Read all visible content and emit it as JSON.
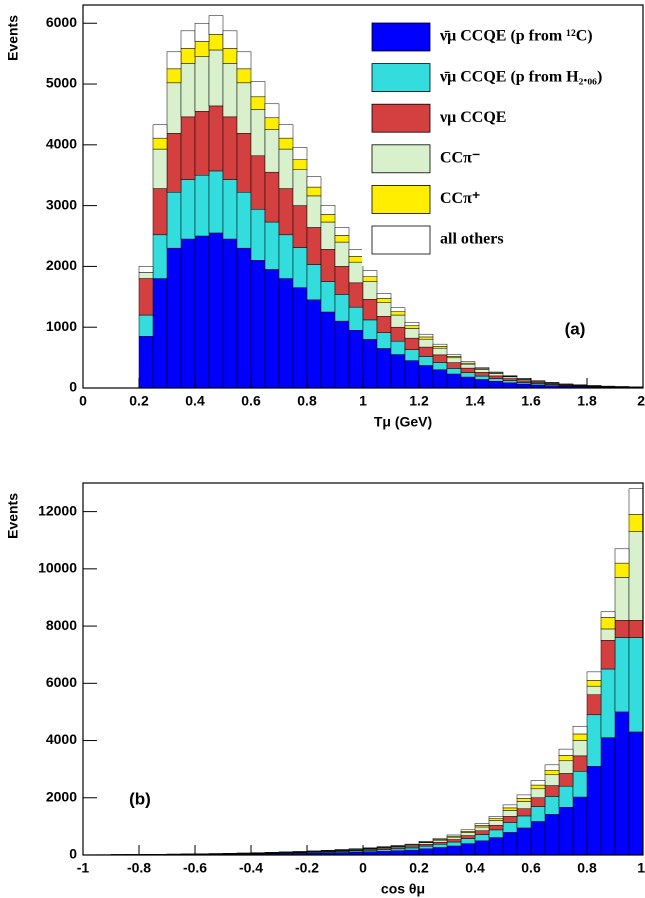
{
  "chart_data": [
    {
      "type": "stacked_histogram",
      "x_label": "Tμ (GeV)",
      "y_label": "Events",
      "annotation": "(a)",
      "bins": [
        0,
        0.05,
        0.1,
        0.15,
        0.2,
        0.25,
        0.3,
        0.35,
        0.4,
        0.45,
        0.5,
        0.55,
        0.6,
        0.65,
        0.7,
        0.75,
        0.8,
        0.85,
        0.9,
        0.95,
        1,
        1.05,
        1.1,
        1.15,
        1.2,
        1.25,
        1.3,
        1.35,
        1.4,
        1.45,
        1.5,
        1.55,
        1.6,
        1.65,
        1.7,
        1.75,
        1.8,
        1.85,
        1.9,
        1.95,
        2
      ],
      "xlim": [
        0,
        2
      ],
      "xticks": [
        0,
        0.2,
        0.4,
        0.6,
        0.8,
        1,
        1.2,
        1.4,
        1.6,
        1.8,
        2
      ],
      "ylim": [
        0,
        6300
      ],
      "yticks": [
        0,
        1000,
        2000,
        3000,
        4000,
        5000,
        6000
      ],
      "legend": "upper right",
      "series": [
        {
          "name": "ν̄μ CCQE (p from ¹²C)",
          "color": "#0000ff",
          "values": [
            0,
            0,
            0,
            0,
            850,
            1800,
            2300,
            2450,
            2500,
            2550,
            2450,
            2300,
            2100,
            1950,
            1800,
            1650,
            1450,
            1250,
            1100,
            950,
            800,
            650,
            550,
            450,
            370,
            300,
            230,
            180,
            140,
            110,
            85,
            65,
            50,
            38,
            28,
            22,
            17,
            13,
            10,
            8
          ]
        },
        {
          "name": "ν̄μ CCQE (p from H₂.₀₆)",
          "color": "#33dddd",
          "values": [
            0,
            0,
            0,
            0,
            350,
            720,
            920,
            980,
            1000,
            1020,
            980,
            920,
            840,
            780,
            720,
            660,
            580,
            500,
            440,
            380,
            320,
            260,
            220,
            180,
            148,
            120,
            92,
            72,
            56,
            44,
            34,
            26,
            20,
            15,
            11,
            9,
            7,
            5,
            4,
            3
          ]
        },
        {
          "name": "νμ CCQE",
          "color": "#d44040",
          "values": [
            0,
            0,
            0,
            0,
            600,
            760,
            970,
            1030,
            1050,
            1070,
            1030,
            970,
            880,
            820,
            760,
            690,
            610,
            530,
            460,
            400,
            340,
            270,
            230,
            190,
            155,
            125,
            95,
            75,
            60,
            45,
            35,
            27,
            21,
            16,
            12,
            9,
            7,
            5,
            4,
            3
          ]
        },
        {
          "name": "CCπ⁻",
          "color": "#d8f0cc",
          "values": [
            0,
            0,
            0,
            0,
            100,
            650,
            830,
            880,
            900,
            920,
            880,
            830,
            760,
            700,
            650,
            590,
            520,
            450,
            400,
            340,
            290,
            230,
            200,
            160,
            130,
            110,
            80,
            65,
            50,
            40,
            30,
            23,
            18,
            14,
            10,
            8,
            6,
            5,
            4,
            3
          ]
        },
        {
          "name": "CCπ⁺",
          "color": "#ffee00",
          "values": [
            0,
            0,
            0,
            0,
            0,
            180,
            230,
            245,
            250,
            255,
            245,
            230,
            210,
            195,
            180,
            165,
            145,
            125,
            110,
            95,
            80,
            65,
            55,
            45,
            37,
            30,
            23,
            18,
            14,
            11,
            9,
            7,
            5,
            4,
            3,
            2,
            2,
            1,
            1,
            1
          ]
        },
        {
          "name": "all others",
          "color": "#ffffff",
          "values": [
            0,
            0,
            0,
            0,
            100,
            220,
            280,
            290,
            300,
            310,
            290,
            280,
            250,
            230,
            220,
            200,
            170,
            150,
            130,
            110,
            100,
            80,
            65,
            55,
            45,
            36,
            28,
            22,
            17,
            13,
            10,
            8,
            6,
            5,
            3,
            3,
            2,
            2,
            1,
            1
          ]
        }
      ]
    },
    {
      "type": "stacked_histogram",
      "x_label": "cos θμ",
      "y_label": "Events",
      "annotation": "(b)",
      "bins": [
        -1,
        -0.95,
        -0.9,
        -0.85,
        -0.8,
        -0.75,
        -0.7,
        -0.65,
        -0.6,
        -0.55,
        -0.5,
        -0.45,
        -0.4,
        -0.35,
        -0.3,
        -0.25,
        -0.2,
        -0.15,
        -0.1,
        -0.05,
        0,
        0.05,
        0.1,
        0.15,
        0.2,
        0.25,
        0.3,
        0.35,
        0.4,
        0.45,
        0.5,
        0.55,
        0.6,
        0.65,
        0.7,
        0.75,
        0.8,
        0.85,
        0.9,
        0.95,
        1
      ],
      "xlim": [
        -1,
        1
      ],
      "xticks": [
        -1,
        -0.8,
        -0.6,
        -0.4,
        -0.2,
        0,
        0.2,
        0.4,
        0.6,
        0.8,
        1
      ],
      "ylim": [
        0,
        13000
      ],
      "yticks": [
        0,
        2000,
        4000,
        6000,
        8000,
        10000,
        12000
      ],
      "series": [
        {
          "color": "#0000ff",
          "values": [
            5,
            5,
            7,
            8,
            10,
            12,
            14,
            17,
            20,
            23,
            27,
            32,
            36,
            43,
            50,
            56,
            65,
            74,
            86,
            99,
            113,
            131,
            149,
            171,
            216,
            261,
            315,
            396,
            495,
            608,
            788,
            945,
            1170,
            1418,
            1665,
            2025,
            3100,
            4100,
            5000,
            4300
          ]
        },
        {
          "color": "#33dddd",
          "values": [
            2,
            2,
            3,
            4,
            4,
            5,
            6,
            8,
            9,
            10,
            12,
            14,
            16,
            19,
            22,
            25,
            29,
            33,
            38,
            44,
            50,
            58,
            66,
            76,
            96,
            116,
            140,
            176,
            220,
            270,
            350,
            420,
            520,
            630,
            740,
            900,
            1800,
            2400,
            2600,
            3300
          ]
        },
        {
          "color": "#d44040",
          "values": [
            1,
            1,
            2,
            2,
            3,
            3,
            4,
            5,
            5,
            6,
            7,
            8,
            10,
            11,
            13,
            15,
            17,
            20,
            23,
            26,
            30,
            35,
            40,
            46,
            58,
            70,
            84,
            106,
            132,
            162,
            210,
            252,
            312,
            378,
            444,
            540,
            700,
            1000,
            600,
            600
          ]
        },
        {
          "color": "#d8f0cc",
          "values": [
            1,
            1,
            2,
            2,
            3,
            3,
            4,
            5,
            5,
            6,
            7,
            8,
            10,
            11,
            13,
            15,
            17,
            20,
            23,
            26,
            30,
            35,
            40,
            46,
            58,
            70,
            84,
            106,
            132,
            162,
            210,
            252,
            312,
            378,
            444,
            540,
            300,
            400,
            1500,
            3100
          ]
        },
        {
          "color": "#ffee00",
          "values": [
            0,
            1,
            1,
            1,
            1,
            1,
            2,
            2,
            2,
            3,
            3,
            4,
            4,
            5,
            6,
            6,
            7,
            8,
            10,
            11,
            13,
            15,
            17,
            19,
            24,
            29,
            35,
            44,
            55,
            68,
            88,
            105,
            130,
            158,
            185,
            225,
            200,
            400,
            500,
            600
          ]
        },
        {
          "color": "#ffffff",
          "values": [
            1,
            1,
            1,
            1,
            1,
            2,
            2,
            2,
            3,
            3,
            4,
            4,
            5,
            6,
            7,
            8,
            9,
            10,
            11,
            13,
            15,
            17,
            20,
            23,
            29,
            35,
            42,
            53,
            66,
            81,
            105,
            126,
            156,
            189,
            222,
            270,
            300,
            200,
            500,
            900
          ]
        }
      ]
    }
  ]
}
